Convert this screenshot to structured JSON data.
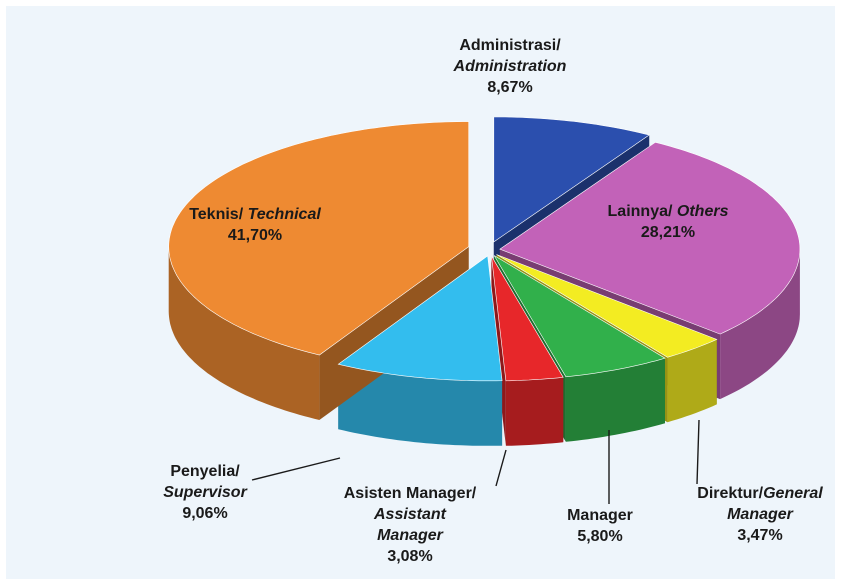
{
  "chart_data": {
    "type": "pie",
    "categories": [
      "Administrasi/ Administration",
      "Lainnya/ Others",
      "Direktur/General Manager",
      "Manager",
      "Asisten Manager/ Assistant Manager",
      "Penyelia/ Supervisor",
      "Teknis/ Technical"
    ],
    "values": [
      8.67,
      28.21,
      3.47,
      5.8,
      3.08,
      9.06,
      41.7
    ],
    "value_labels": [
      "8,67%",
      "28,21%",
      "3,47%",
      "5,80%",
      "3,08%",
      "9,06%",
      "41,70%"
    ],
    "colors": [
      "#2b4fae",
      "#c262b8",
      "#f3ec22",
      "#31b04b",
      "#e7272a",
      "#33bdee",
      "#ee8a32"
    ]
  }
}
